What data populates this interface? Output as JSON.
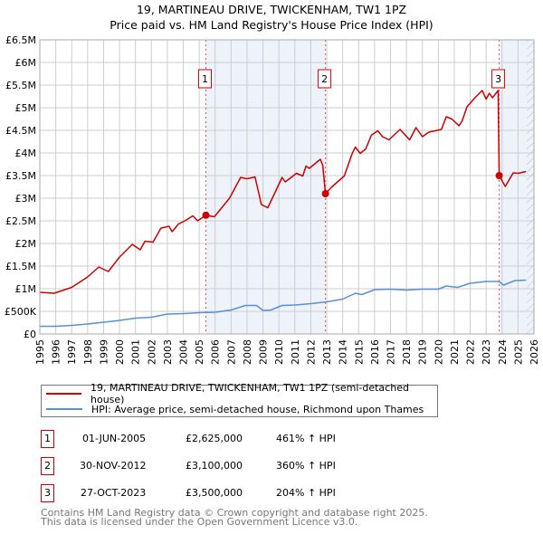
{
  "title": "19, MARTINEAU DRIVE, TWICKENHAM, TW1 1PZ",
  "subtitle": "Price paid vs. HM Land Registry's House Price Index (HPI)",
  "colors": {
    "property": "#cc0000",
    "hpi": "#5b8fd4",
    "shade": "#eef3fb",
    "grid": "#cccccc"
  },
  "chart_data": {
    "type": "line",
    "xlim": [
      1995,
      2026
    ],
    "ylim": [
      0,
      6500000
    ],
    "x_ticks": [
      "1995",
      "1996",
      "1997",
      "1998",
      "1999",
      "2000",
      "2001",
      "2002",
      "2003",
      "2004",
      "2005",
      "2006",
      "2007",
      "2008",
      "2009",
      "2010",
      "2011",
      "2012",
      "2013",
      "2014",
      "2015",
      "2016",
      "2017",
      "2018",
      "2019",
      "2020",
      "2021",
      "2022",
      "2023",
      "2024",
      "2025",
      "2026"
    ],
    "y_ticks": [
      {
        "v": 0,
        "label": "£0"
      },
      {
        "v": 500000,
        "label": "£500K"
      },
      {
        "v": 1000000,
        "label": "£1M"
      },
      {
        "v": 1500000,
        "label": "£1.5M"
      },
      {
        "v": 2000000,
        "label": "£2M"
      },
      {
        "v": 2500000,
        "label": "£2.5M"
      },
      {
        "v": 3000000,
        "label": "£3M"
      },
      {
        "v": 3500000,
        "label": "£3.5M"
      },
      {
        "v": 4000000,
        "label": "£4M"
      },
      {
        "v": 4500000,
        "label": "£4.5M"
      },
      {
        "v": 5000000,
        "label": "£5M"
      },
      {
        "v": 5500000,
        "label": "£5.5M"
      },
      {
        "v": 6000000,
        "label": "£6M"
      },
      {
        "v": 6500000,
        "label": "£6.5M"
      }
    ],
    "grid": true,
    "shaded_ranges": [
      [
        2005.42,
        2012.92
      ],
      [
        2023.82,
        2026
      ]
    ],
    "projection_from": 2025.55,
    "series": [
      {
        "name": "19, MARTINEAU DRIVE, TWICKENHAM, TW1 1PZ (semi-detached house)",
        "color": "#cc0000",
        "points": [
          [
            1995.0,
            0.92
          ],
          [
            1995.9,
            0.9
          ],
          [
            1997.0,
            1.03
          ],
          [
            1998.0,
            1.26
          ],
          [
            1998.7,
            1.48
          ],
          [
            1999.3,
            1.38
          ],
          [
            2000.0,
            1.7
          ],
          [
            2000.8,
            1.98
          ],
          [
            2001.3,
            1.86
          ],
          [
            2001.6,
            2.05
          ],
          [
            2002.1,
            2.03
          ],
          [
            2002.6,
            2.34
          ],
          [
            2003.1,
            2.38
          ],
          [
            2003.3,
            2.26
          ],
          [
            2003.7,
            2.43
          ],
          [
            2004.1,
            2.5
          ],
          [
            2004.6,
            2.61
          ],
          [
            2004.9,
            2.5
          ],
          [
            2005.42,
            2.625
          ],
          [
            2005.95,
            2.59
          ],
          [
            2006.9,
            3.0
          ],
          [
            2007.6,
            3.46
          ],
          [
            2008.0,
            3.43
          ],
          [
            2008.5,
            3.47
          ],
          [
            2008.9,
            2.86
          ],
          [
            2009.3,
            2.79
          ],
          [
            2009.8,
            3.16
          ],
          [
            2010.2,
            3.46
          ],
          [
            2010.4,
            3.36
          ],
          [
            2011.1,
            3.55
          ],
          [
            2011.5,
            3.49
          ],
          [
            2011.7,
            3.71
          ],
          [
            2011.9,
            3.66
          ],
          [
            2012.6,
            3.86
          ],
          [
            2012.75,
            3.73
          ],
          [
            2012.92,
            3.1
          ],
          [
            2013.35,
            3.26
          ],
          [
            2013.9,
            3.43
          ],
          [
            2014.1,
            3.49
          ],
          [
            2014.6,
            3.99
          ],
          [
            2014.8,
            4.13
          ],
          [
            2015.1,
            3.99
          ],
          [
            2015.45,
            4.09
          ],
          [
            2015.8,
            4.39
          ],
          [
            2016.2,
            4.49
          ],
          [
            2016.5,
            4.36
          ],
          [
            2016.9,
            4.29
          ],
          [
            2017.6,
            4.52
          ],
          [
            2018.2,
            4.29
          ],
          [
            2018.6,
            4.56
          ],
          [
            2019.0,
            4.36
          ],
          [
            2019.4,
            4.46
          ],
          [
            2020.2,
            4.52
          ],
          [
            2020.5,
            4.8
          ],
          [
            2020.85,
            4.75
          ],
          [
            2021.3,
            4.6
          ],
          [
            2021.5,
            4.71
          ],
          [
            2021.8,
            5.02
          ],
          [
            2022.3,
            5.22
          ],
          [
            2022.75,
            5.38
          ],
          [
            2023.0,
            5.19
          ],
          [
            2023.2,
            5.32
          ],
          [
            2023.4,
            5.22
          ],
          [
            2023.75,
            5.38
          ],
          [
            2023.82,
            3.5
          ],
          [
            2024.2,
            3.26
          ],
          [
            2024.7,
            3.56
          ],
          [
            2025.0,
            3.55
          ],
          [
            2025.5,
            3.59
          ]
        ]
      },
      {
        "name": "HPI: Average price, semi-detached house, Richmond upon Thames",
        "color": "#5b8fd4",
        "points": [
          [
            1995,
            0.17
          ],
          [
            1996,
            0.17
          ],
          [
            1997,
            0.19
          ],
          [
            1998,
            0.22
          ],
          [
            1999,
            0.26
          ],
          [
            2000,
            0.3
          ],
          [
            2001,
            0.35
          ],
          [
            2002,
            0.37
          ],
          [
            2003,
            0.44
          ],
          [
            2004,
            0.45
          ],
          [
            2005,
            0.47
          ],
          [
            2006,
            0.48
          ],
          [
            2007,
            0.53
          ],
          [
            2007.9,
            0.63
          ],
          [
            2008.6,
            0.63
          ],
          [
            2009,
            0.52
          ],
          [
            2009.5,
            0.53
          ],
          [
            2010.2,
            0.63
          ],
          [
            2011,
            0.64
          ],
          [
            2012,
            0.67
          ],
          [
            2013,
            0.71
          ],
          [
            2014,
            0.77
          ],
          [
            2014.8,
            0.9
          ],
          [
            2015.2,
            0.87
          ],
          [
            2016,
            0.98
          ],
          [
            2017,
            0.99
          ],
          [
            2018,
            0.97
          ],
          [
            2019,
            0.99
          ],
          [
            2020,
            0.99
          ],
          [
            2020.5,
            1.06
          ],
          [
            2021.2,
            1.03
          ],
          [
            2022,
            1.12
          ],
          [
            2023,
            1.16
          ],
          [
            2023.8,
            1.16
          ],
          [
            2024.1,
            1.08
          ],
          [
            2024.8,
            1.18
          ],
          [
            2025.5,
            1.19
          ]
        ]
      }
    ],
    "value_unit": "millions GBP",
    "sales": [
      {
        "n": "1",
        "x": 2005.42,
        "y": 2.625
      },
      {
        "n": "2",
        "x": 2012.92,
        "y": 3.1
      },
      {
        "n": "3",
        "x": 2023.82,
        "y": 3.5
      }
    ]
  },
  "legend": {
    "property": "19, MARTINEAU DRIVE, TWICKENHAM, TW1 1PZ (semi-detached house)",
    "hpi": "HPI: Average price, semi-detached house, Richmond upon Thames"
  },
  "transactions": [
    {
      "n": "1",
      "date": "01-JUN-2005",
      "price": "£2,625,000",
      "hpi": "461% ↑ HPI"
    },
    {
      "n": "2",
      "date": "30-NOV-2012",
      "price": "£3,100,000",
      "hpi": "360% ↑ HPI"
    },
    {
      "n": "3",
      "date": "27-OCT-2023",
      "price": "£3,500,000",
      "hpi": "204% ↑ HPI"
    }
  ],
  "footer": {
    "line1": "Contains HM Land Registry data © Crown copyright and database right 2025.",
    "line2": "This data is licensed under the Open Government Licence v3.0."
  }
}
